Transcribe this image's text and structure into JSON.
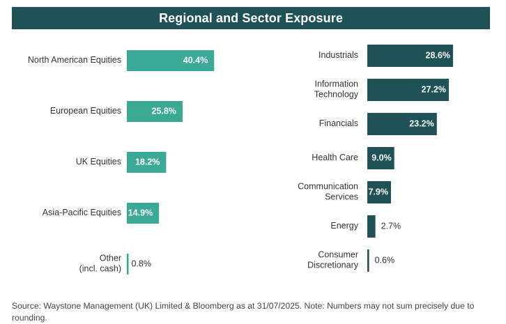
{
  "title": "Regional and Sector Exposure",
  "colors": {
    "header_bg": "#1e5257",
    "regional": "#3aaa97",
    "sector": "#1e5257",
    "text": "#333333"
  },
  "chart_data": [
    {
      "type": "bar",
      "orientation": "horizontal",
      "categories": [
        "North American Equities",
        "European Equities",
        "UK Equities",
        "Asia-Pacific Equities",
        "Other (incl. cash)"
      ],
      "category_lines": [
        [
          "North American Equities"
        ],
        [
          "European Equities"
        ],
        [
          "UK Equities"
        ],
        [
          "Asia-Pacific Equities"
        ],
        [
          "Other",
          "(incl. cash)"
        ]
      ],
      "values": [
        40.4,
        25.8,
        18.2,
        14.9,
        0.8
      ],
      "labels": [
        "40.4%",
        "25.8%",
        "18.2%",
        "14.9%",
        "0.8%"
      ]
    },
    {
      "type": "bar",
      "orientation": "horizontal",
      "categories": [
        "Industrials",
        "Information Technology",
        "Financials",
        "Health Care",
        "Communication Services",
        "Energy",
        "Consumer Discretionary"
      ],
      "category_lines": [
        [
          "Industrials"
        ],
        [
          "Information",
          "Technology"
        ],
        [
          "Financials"
        ],
        [
          "Health Care"
        ],
        [
          "Communication",
          "Services"
        ],
        [
          "Energy"
        ],
        [
          "Consumer",
          "Discretionary"
        ]
      ],
      "values": [
        28.6,
        27.2,
        23.2,
        9.0,
        7.9,
        2.7,
        0.6
      ],
      "labels": [
        "28.6%",
        "27.2%",
        "23.2%",
        "9.0%",
        "7.9%",
        "2.7%",
        "0.6%"
      ]
    }
  ],
  "source": "Source: Waystone Management (UK) Limited & Bloomberg as at 31/07/2025. Note: Numbers may not sum precisely due to rounding."
}
